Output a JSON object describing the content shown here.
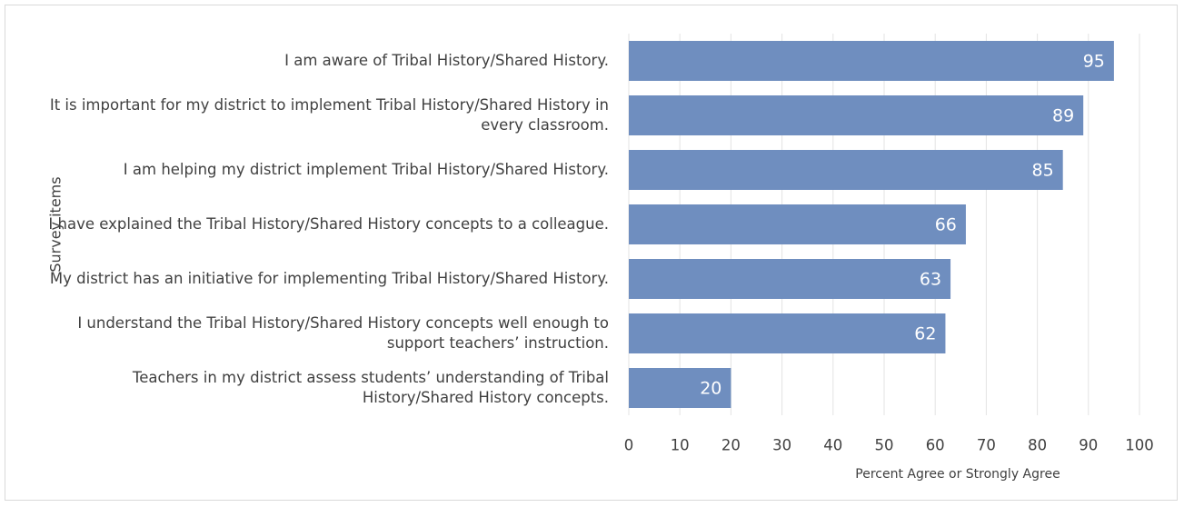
{
  "chart_data": {
    "type": "bar",
    "orientation": "horizontal",
    "categories": [
      "I am aware of Tribal History/Shared History.",
      "It is important for my district to implement Tribal History/Shared History in every classroom.",
      "I am helping my district implement Tribal History/Shared History.",
      "I have explained the Tribal History/Shared History concepts to a colleague.",
      "My district has an initiative for implementing Tribal History/Shared History.",
      "I understand the Tribal History/Shared History concepts well enough to support teachers’ instruction.",
      "Teachers in my district assess students’ understanding of Tribal History/Shared History concepts."
    ],
    "values": [
      95,
      89,
      85,
      66,
      63,
      62,
      20
    ],
    "color": "#6f8ebf",
    "xlim": [
      0,
      100
    ],
    "xticks": [
      0,
      10,
      20,
      30,
      40,
      50,
      60,
      70,
      80,
      90,
      100
    ],
    "x_label": "Percent Agree or Strongly Agree",
    "y_label": "Survey items",
    "grid": true
  }
}
